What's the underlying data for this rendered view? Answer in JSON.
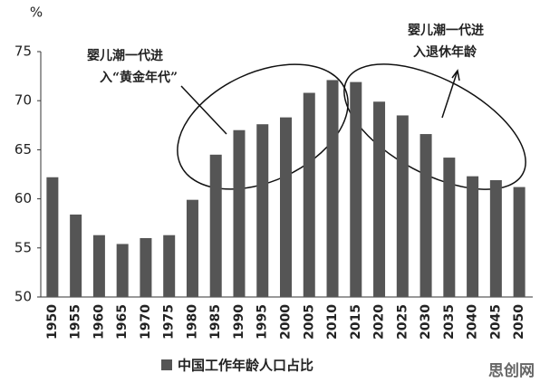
{
  "chart_data": {
    "type": "bar",
    "unit_label": "%",
    "categories": [
      "1950",
      "1955",
      "1960",
      "1965",
      "1970",
      "1975",
      "1980",
      "1985",
      "1990",
      "1995",
      "2000",
      "2005",
      "2010",
      "2015",
      "2020",
      "2025",
      "2030",
      "2035",
      "2040",
      "2045",
      "2050"
    ],
    "series": [
      {
        "name": "中国工作年龄人口占比",
        "color": "#555555",
        "values": [
          62.2,
          58.4,
          56.3,
          55.4,
          56.0,
          56.3,
          59.9,
          64.5,
          67.0,
          67.6,
          68.3,
          70.8,
          72.1,
          71.9,
          69.9,
          68.5,
          66.6,
          64.2,
          62.3,
          61.9,
          61.2
        ]
      }
    ],
    "ylim": [
      50,
      75
    ],
    "yticks": [
      50,
      55,
      60,
      65,
      70,
      75
    ],
    "annotations": [
      [
        "婴儿潮一代进",
        "入“黄金年代”"
      ],
      [
        "婴儿潮一代进",
        "入退休年龄"
      ]
    ],
    "watermark": "思创网"
  }
}
